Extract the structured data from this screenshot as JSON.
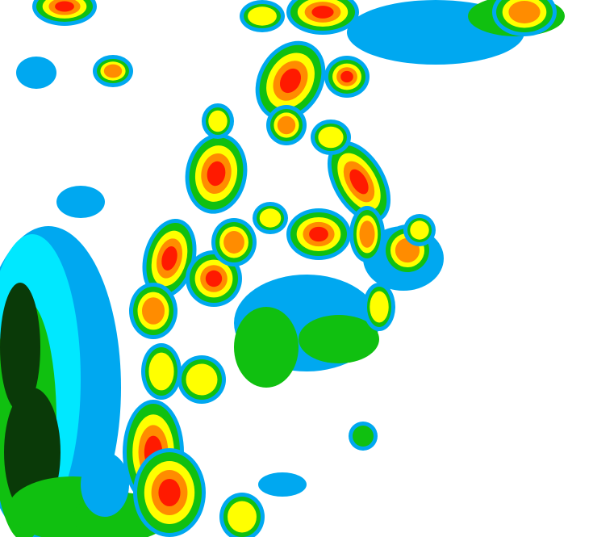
{
  "map": {
    "type": "precipitation-intensity-raster",
    "background": "#ffffff",
    "palette": {
      "light_blue": "#00a8f0",
      "cyan": "#00e8ff",
      "green": "#10c010",
      "dark_green": "#0a3a08",
      "yellow": "#ffff00",
      "orange": "#ff8c00",
      "red": "#ff1a00"
    }
  }
}
